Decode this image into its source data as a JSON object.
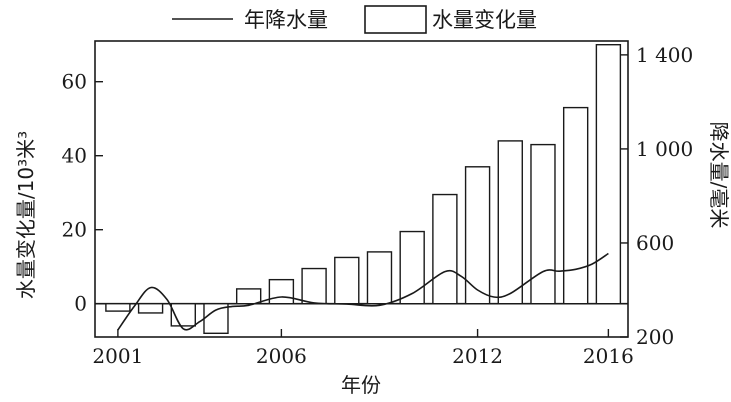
{
  "chart_data": {
    "type": "bar",
    "legend": {
      "line_label": "年降水量",
      "bar_label": "水量变化量",
      "placement": "top"
    },
    "xlabel": "年份",
    "ylabel_left": "水量变化量/10³米³",
    "ylabel_right": "降水量/毫米",
    "x_tick_labels": [
      "2001",
      "2006",
      "2012",
      "2016"
    ],
    "x_tick_years": [
      2001,
      2006,
      2012,
      2016
    ],
    "left_ticks": [
      "0",
      "20",
      "40",
      "60"
    ],
    "left_tick_values": [
      0,
      20,
      40,
      60
    ],
    "right_ticks": [
      "200",
      "600",
      "1 000",
      "1 400"
    ],
    "right_tick_values": [
      200,
      600,
      1000,
      1400
    ],
    "ylim_left": [
      -9,
      71
    ],
    "ylim_right": [
      200,
      1459
    ],
    "xlim": [
      2000.3,
      2016.6
    ],
    "categories": [
      2001,
      2002,
      2003,
      2004,
      2005,
      2006,
      2007,
      2008,
      2009,
      2010,
      2011,
      2012,
      2013,
      2014,
      2015,
      2016
    ],
    "series": [
      {
        "kind": "bar",
        "axis": "left",
        "values": [
          -2,
          -2.5,
          -6,
          -8,
          4,
          6.5,
          9.5,
          12.5,
          14,
          19.5,
          29.5,
          37,
          44,
          43,
          53,
          70
        ]
      },
      {
        "kind": "line",
        "axis": "right",
        "x": [
          2001,
          2001.5,
          2002,
          2002.5,
          2003,
          2003.5,
          2004,
          2004.5,
          2005,
          2006,
          2007,
          2008,
          2009,
          2010,
          2011,
          2011.5,
          2012,
          2012.5,
          2013,
          2014,
          2014.5,
          2015,
          2015.5,
          2016
        ],
        "values": [
          230,
          330,
          410,
          360,
          235,
          265,
          315,
          330,
          335,
          370,
          345,
          340,
          335,
          385,
          478,
          458,
          400,
          370,
          385,
          478,
          480,
          488,
          510,
          555
        ]
      }
    ],
    "grid": false
  }
}
